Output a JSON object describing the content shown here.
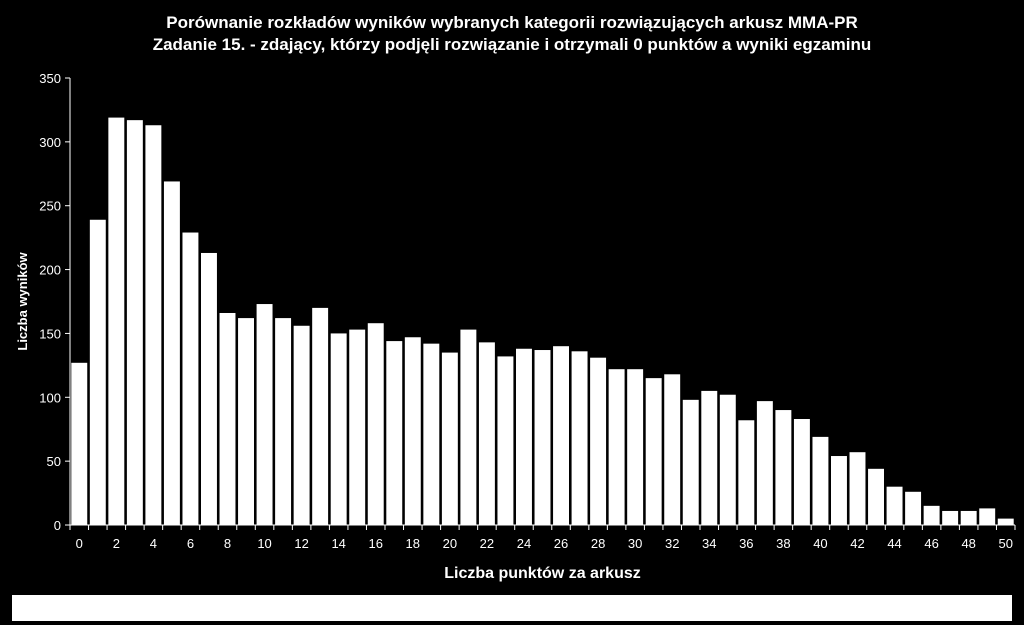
{
  "chart_data": {
    "type": "bar",
    "title": [
      "Porównanie rozkładów wyników wybranych kategorii rozwiązujących arkusz MMA-PR",
      "Zadanie 15. - zdający, którzy podjęli rozwiązanie i otrzymali 0 punktów a wyniki egzaminu"
    ],
    "xlabel": "Liczba punktów za arkusz",
    "ylabel": "Liczba wyników",
    "ylim": [
      0,
      350
    ],
    "yticks": [
      0,
      50,
      100,
      150,
      200,
      250,
      300,
      350
    ],
    "xticks": [
      0,
      2,
      4,
      6,
      8,
      10,
      12,
      14,
      16,
      18,
      20,
      22,
      24,
      26,
      28,
      30,
      32,
      34,
      36,
      38,
      40,
      42,
      44,
      46,
      48,
      50
    ],
    "categories": [
      0,
      1,
      2,
      3,
      4,
      5,
      6,
      7,
      8,
      9,
      10,
      11,
      12,
      13,
      14,
      15,
      16,
      17,
      18,
      19,
      20,
      21,
      22,
      23,
      24,
      25,
      26,
      27,
      28,
      29,
      30,
      31,
      32,
      33,
      34,
      35,
      36,
      37,
      38,
      39,
      40,
      41,
      42,
      43,
      44,
      45,
      46,
      47,
      48,
      49,
      50
    ],
    "values": [
      127,
      239,
      319,
      317,
      313,
      269,
      229,
      213,
      166,
      162,
      173,
      162,
      156,
      170,
      150,
      153,
      158,
      144,
      147,
      142,
      135,
      153,
      143,
      132,
      138,
      137,
      140,
      136,
      131,
      122,
      122,
      115,
      118,
      98,
      105,
      102,
      82,
      97,
      90,
      83,
      69,
      54,
      57,
      44,
      30,
      26,
      15,
      11,
      11,
      13,
      5
    ],
    "bar_color": "#ffffff",
    "background_color": "#000000",
    "grid": false,
    "legend": "bottom"
  }
}
